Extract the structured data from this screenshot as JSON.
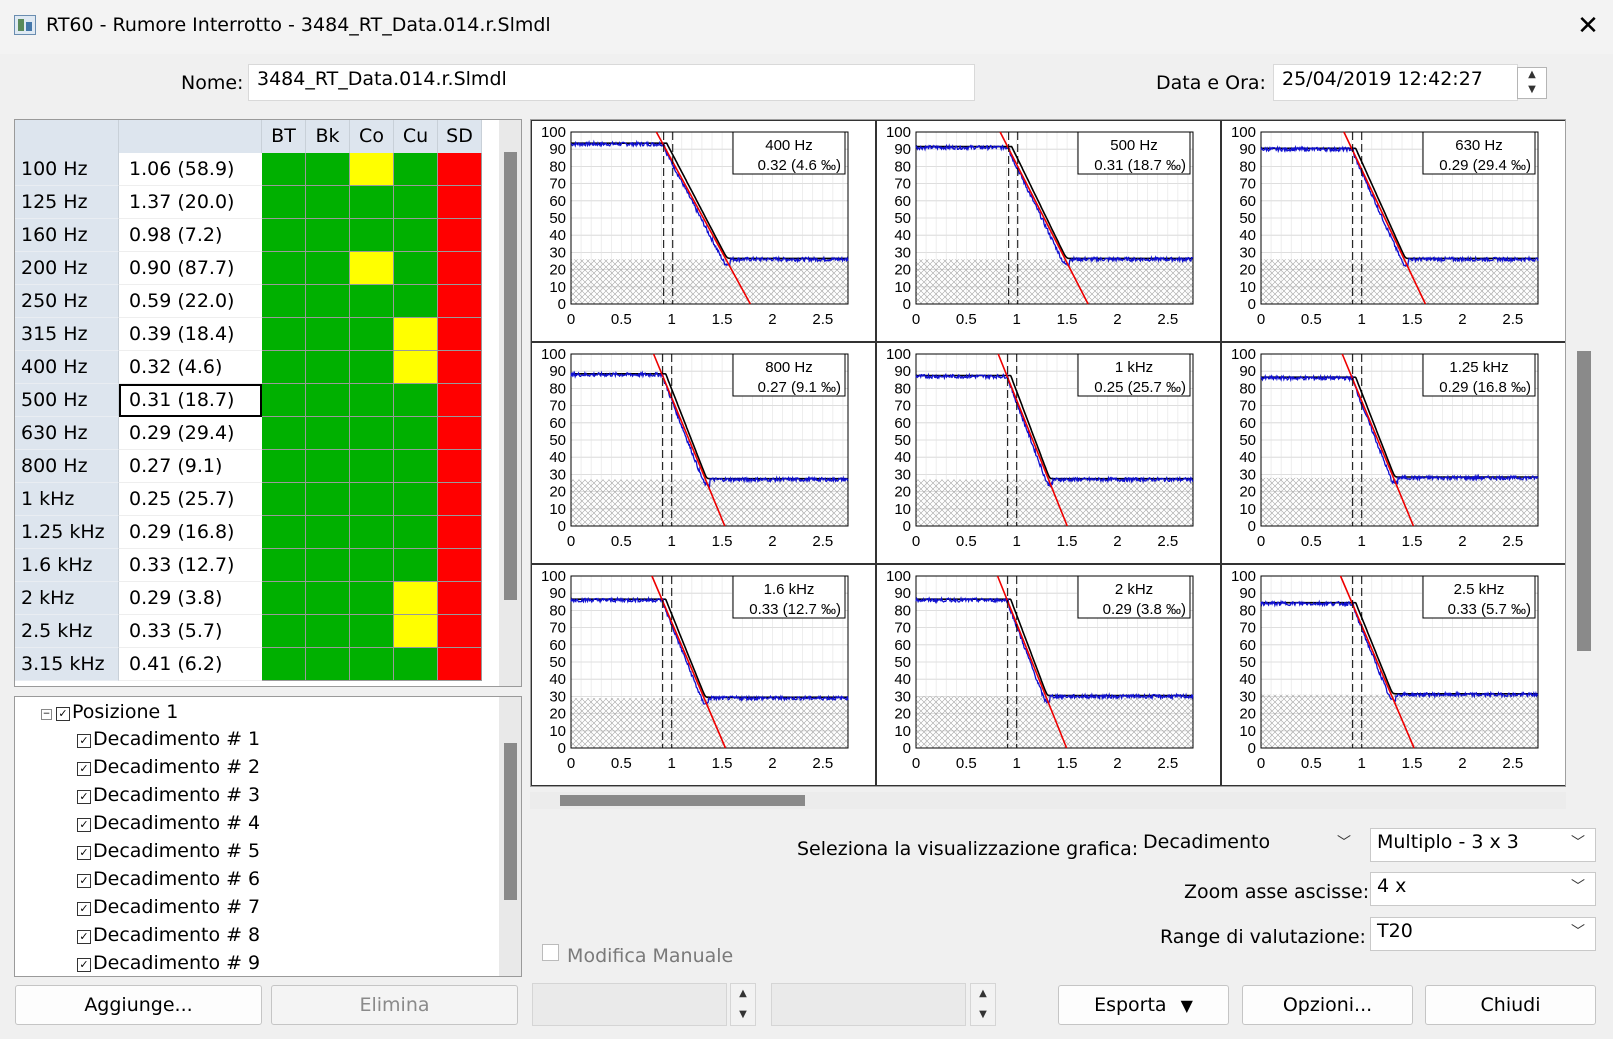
{
  "window": {
    "title": "RT60 - Rumore Interrotto - 3484_RT_Data.014.r.Slmdl",
    "close_icon": "close-icon"
  },
  "header": {
    "name_label": "Nome:",
    "name_value": "3484_RT_Data.014.r.Slmdl",
    "date_label": "Data e Ora:",
    "date_value": "25/04/2019 12:42:27"
  },
  "table": {
    "headers": [
      "BT",
      "Bk",
      "Co",
      "Cu",
      "SD"
    ],
    "colors": {
      "green": "#00b000",
      "yellow": "#ffff00",
      "red": "#ff0000"
    },
    "rows": [
      {
        "freq": "100 Hz",
        "value": "1.06  (58.9)",
        "status": [
          "green",
          "green",
          "yellow",
          "green",
          "red"
        ]
      },
      {
        "freq": "125 Hz",
        "value": "1.37  (20.0)",
        "status": [
          "green",
          "green",
          "green",
          "green",
          "red"
        ]
      },
      {
        "freq": "160 Hz",
        "value": "0.98  (7.2)",
        "status": [
          "green",
          "green",
          "green",
          "green",
          "red"
        ]
      },
      {
        "freq": "200 Hz",
        "value": "0.90  (87.7)",
        "status": [
          "green",
          "green",
          "yellow",
          "green",
          "red"
        ]
      },
      {
        "freq": "250 Hz",
        "value": "0.59  (22.0)",
        "status": [
          "green",
          "green",
          "green",
          "green",
          "red"
        ]
      },
      {
        "freq": "315 Hz",
        "value": "0.39  (18.4)",
        "status": [
          "green",
          "green",
          "green",
          "yellow",
          "red"
        ]
      },
      {
        "freq": "400 Hz",
        "value": "0.32  (4.6)",
        "status": [
          "green",
          "green",
          "green",
          "yellow",
          "red"
        ]
      },
      {
        "freq": "500 Hz",
        "value": "0.31  (18.7)",
        "status": [
          "green",
          "green",
          "green",
          "green",
          "red"
        ],
        "selected": true
      },
      {
        "freq": "630 Hz",
        "value": "0.29  (29.4)",
        "status": [
          "green",
          "green",
          "green",
          "green",
          "red"
        ]
      },
      {
        "freq": "800 Hz",
        "value": "0.27  (9.1)",
        "status": [
          "green",
          "green",
          "green",
          "green",
          "red"
        ]
      },
      {
        "freq": "1 kHz",
        "value": "0.25  (25.7)",
        "status": [
          "green",
          "green",
          "green",
          "green",
          "red"
        ]
      },
      {
        "freq": "1.25 kHz",
        "value": "0.29  (16.8)",
        "status": [
          "green",
          "green",
          "green",
          "green",
          "red"
        ]
      },
      {
        "freq": "1.6 kHz",
        "value": "0.33  (12.7)",
        "status": [
          "green",
          "green",
          "green",
          "green",
          "red"
        ]
      },
      {
        "freq": "2 kHz",
        "value": "0.29  (3.8)",
        "status": [
          "green",
          "green",
          "green",
          "yellow",
          "red"
        ]
      },
      {
        "freq": "2.5 kHz",
        "value": "0.33  (5.7)",
        "status": [
          "green",
          "green",
          "green",
          "yellow",
          "red"
        ]
      },
      {
        "freq": "3.15 kHz",
        "value": "0.41  (6.2)",
        "status": [
          "green",
          "green",
          "green",
          "green",
          "red"
        ]
      }
    ]
  },
  "tree": {
    "root": "Posizione 1",
    "items": [
      "Decadimento # 1",
      "Decadimento # 2",
      "Decadimento # 3",
      "Decadimento # 4",
      "Decadimento # 5",
      "Decadimento # 6",
      "Decadimento # 7",
      "Decadimento # 8",
      "Decadimento # 9"
    ]
  },
  "charts": {
    "y_ticks": [
      "100",
      "90",
      "80",
      "70",
      "60",
      "50",
      "40",
      "30",
      "20",
      "10",
      "0"
    ],
    "x_ticks": [
      "0",
      "0.5",
      "1",
      "1.5",
      "2",
      "2.5"
    ],
    "panels": [
      {
        "band": "400 Hz",
        "result": "0.32  (4.6 ‰)",
        "plateau": 93,
        "floor": 26,
        "t0": 0.93,
        "slope": 112
      },
      {
        "band": "500 Hz",
        "result": "0.31  (18.7 ‰)",
        "plateau": 91,
        "floor": 26,
        "t0": 0.93,
        "slope": 120
      },
      {
        "band": "630 Hz",
        "result": "0.29  (29.4 ‰)",
        "plateau": 90,
        "floor": 26,
        "t0": 0.92,
        "slope": 130
      },
      {
        "band": "800 Hz",
        "result": "0.27  (9.1 ‰)",
        "plateau": 88,
        "floor": 27,
        "t0": 0.92,
        "slope": 150
      },
      {
        "band": "1 kHz",
        "result": "0.25  (25.7 ‰)",
        "plateau": 87,
        "floor": 27,
        "t0": 0.92,
        "slope": 155
      },
      {
        "band": "1.25 kHz",
        "result": "0.29  (16.8 ‰)",
        "plateau": 86,
        "floor": 28,
        "t0": 0.92,
        "slope": 150
      },
      {
        "band": "1.6 kHz",
        "result": "0.33  (12.7 ‰)",
        "plateau": 86,
        "floor": 29,
        "t0": 0.92,
        "slope": 145
      },
      {
        "band": "2 kHz",
        "result": "0.29  (3.8 ‰)",
        "plateau": 86,
        "floor": 30,
        "t0": 0.92,
        "slope": 155
      },
      {
        "band": "2.5 kHz",
        "result": "0.33  (5.7 ‰)",
        "plateau": 84,
        "floor": 31,
        "t0": 0.92,
        "slope": 145
      }
    ]
  },
  "controls": {
    "checkbox_label": "Modifica Manuale",
    "view_label": "Seleziona la visualizzazione grafica:",
    "view_value": "Decadimento",
    "layout_value": "Multiplo - 3 x 3",
    "zoom_label": "Zoom asse ascisse:",
    "zoom_value": "4 x",
    "range_label": "Range di valutazione:",
    "range_value": "T20"
  },
  "buttons": {
    "add": "Aggiunge...",
    "delete": "Elimina",
    "export": "Esporta",
    "options": "Opzioni...",
    "close": "Chiudi"
  }
}
